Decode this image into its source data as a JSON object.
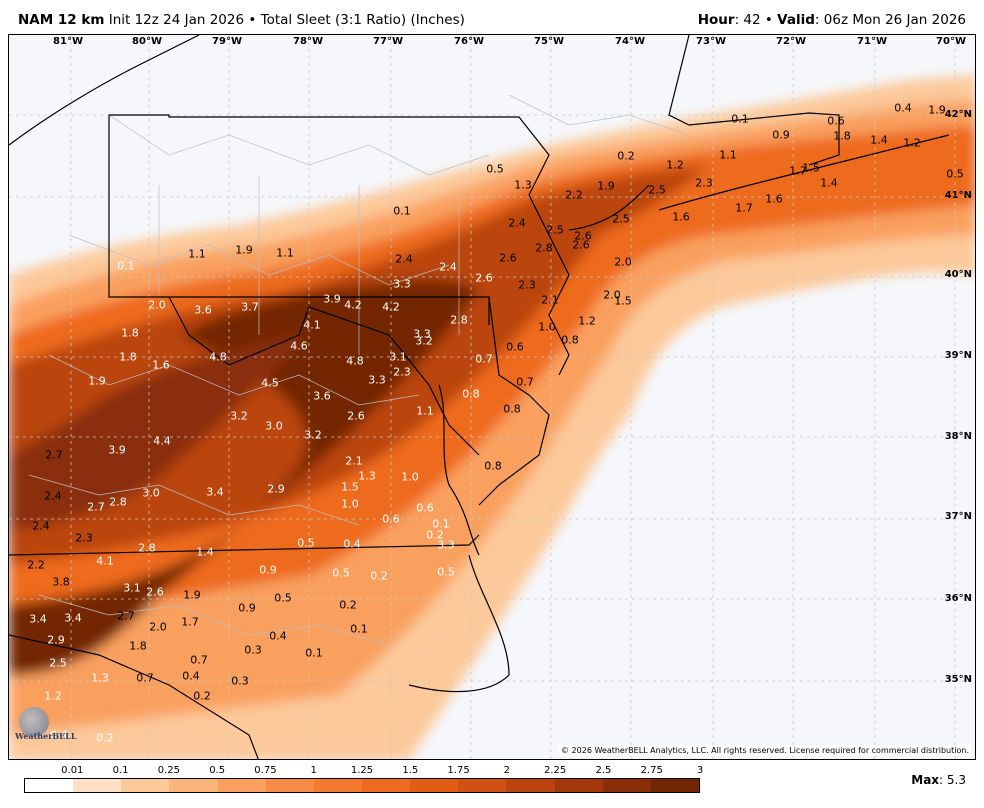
{
  "header": {
    "model": "NAM 12 km",
    "init": "Init 12z 24 Jan 2026",
    "separator": "•",
    "product": "Total Sleet (3:1 Ratio) (Inches)",
    "hour_label": "Hour",
    "hour_value": ": 42",
    "valid_label": "Valid",
    "valid_value": ": 06z Mon 26 Jan 2026"
  },
  "colors": {
    "ocean": "#f5f7fb",
    "land": "#f5f7fb",
    "scale": [
      "#ffffff",
      "#fde0c5",
      "#fcc99a",
      "#fbb479",
      "#f9a05e",
      "#f78b45",
      "#f47a30",
      "#ee6a1f",
      "#e25d14",
      "#d05111",
      "#ba440d",
      "#a0380a",
      "#8a2e08",
      "#732506"
    ]
  },
  "map": {
    "lon_labels": [
      "81°W",
      "80°W",
      "79°W",
      "78°W",
      "77°W",
      "76°W",
      "75°W",
      "74°W",
      "73°W",
      "72°W",
      "71°W",
      "70°W"
    ],
    "lat_labels": [
      "42°N",
      "41°N",
      "40°N",
      "39°N",
      "38°N",
      "37°N",
      "36°N",
      "35°N"
    ],
    "values": [
      "0.4",
      "1.9",
      "0.1",
      "0.6",
      "0.9",
      "1.8",
      "1.4",
      "1.2",
      "0.2",
      "1.1",
      "1.2",
      "1.7",
      "1.5",
      "0.5",
      "1.3",
      "2.2",
      "1.9",
      "2.5",
      "2.3",
      "1.4",
      "0.5",
      "0.1",
      "2.4",
      "2.5",
      "2.6",
      "2.5",
      "1.6",
      "1.7",
      "1.6",
      "1.1",
      "1.9",
      "1.1",
      "2.8",
      "2.6",
      "2.0",
      "0.1",
      "2.4",
      "2.4",
      "2.6",
      "2.6",
      "3.3",
      "2.3",
      "2.0",
      "3.6",
      "3.7",
      "3.9",
      "4.2",
      "4.2",
      "2.1",
      "2.0",
      "1.8",
      "4.1",
      "2.8",
      "1.0",
      "1.2",
      "1.5",
      "3.3",
      "1.8",
      "1.6",
      "4.8",
      "4.6",
      "3.2",
      "0.6",
      "0.8",
      "4.8",
      "3.1",
      "0.7",
      "1.9",
      "4.5",
      "3.3",
      "2.3",
      "0.7",
      "3.6",
      "0.8",
      "0.8",
      "3.2",
      "1.1",
      "2.6",
      "3.0",
      "3.2",
      "4.4",
      "3.9",
      "2.7",
      "2.1",
      "0.8",
      "1.0",
      "1.3",
      "2.4",
      "3.4",
      "2.9",
      "1.5",
      "2.8",
      "2.7",
      "3.0",
      "1.0",
      "0.6",
      "0.6",
      "2.4",
      "0.1",
      "2.3",
      "0.2",
      "3.3",
      "2.8",
      "1.4",
      "0.5",
      "0.4",
      "0.5",
      "2.2",
      "4.1",
      "0.9",
      "0.5",
      "0.2",
      "3.8",
      "3.1",
      "2.6",
      "1.9",
      "0.5",
      "0.2",
      "3.4",
      "3.4",
      "2.7",
      "2.0",
      "1.7",
      "0.9",
      "0.1",
      "2.9",
      "0.4",
      "1.8",
      "0.3",
      "0.1",
      "2.5",
      "0.7",
      "1.3",
      "0.7",
      "0.4",
      "0.3",
      "1.2",
      "0.2",
      "0.4",
      "0.2"
    ],
    "copyright": "© 2026 WeatherBELL Analytics, LLC. All rights reserved. License required for commercial distribution.",
    "logo": "WeatherBELL"
  },
  "legend": {
    "labels": [
      "0.01",
      "0.1",
      "0.25",
      "0.5",
      "0.75",
      "1",
      "1.25",
      "1.5",
      "1.75",
      "2",
      "2.25",
      "2.5",
      "2.75",
      "3"
    ],
    "max_label": "Max",
    "max_value": ": 5.3"
  }
}
